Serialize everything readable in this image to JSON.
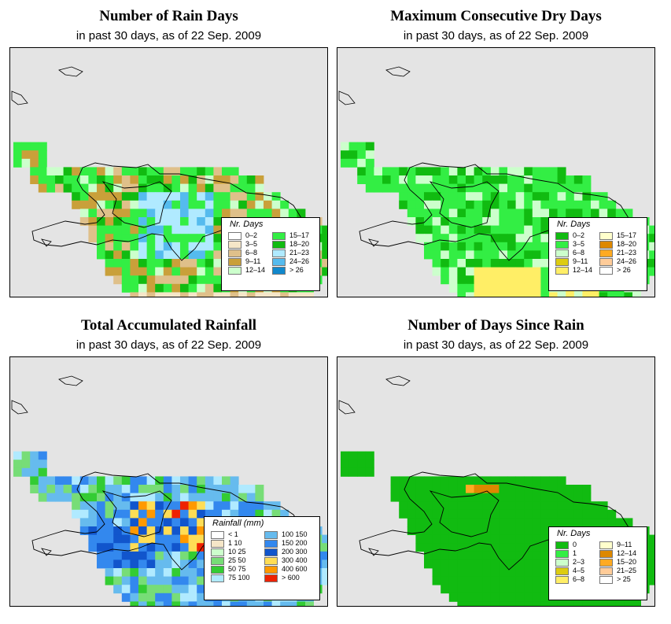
{
  "subtitle": "in past 30 days, as of  22 Sep. 2009",
  "panels": [
    {
      "id": "rain-days",
      "title": "Number of Rain Days",
      "legend_title": "Nr. Days",
      "legend": [
        {
          "label": "0–2",
          "color": "#ffffff"
        },
        {
          "label": "3–5",
          "color": "#f5e6c8"
        },
        {
          "label": "6–8",
          "color": "#dfc08a"
        },
        {
          "label": "9–11",
          "color": "#c9a03a"
        },
        {
          "label": "12–14",
          "color": "#ccffcc"
        },
        {
          "label": "15–17",
          "color": "#33ee44"
        },
        {
          "label": "18–20",
          "color": "#11bb11"
        },
        {
          "label": "21–23",
          "color": "#b0eaff"
        },
        {
          "label": "24–26",
          "color": "#55bbee"
        },
        {
          "label": "> 26",
          "color": "#1188cc"
        }
      ]
    },
    {
      "id": "dry-days",
      "title": "Maximum Consecutive Dry Days",
      "legend_title": "Nr. Days",
      "legend": [
        {
          "label": "0–2",
          "color": "#11bb11"
        },
        {
          "label": "3–5",
          "color": "#33ee44"
        },
        {
          "label": "6–8",
          "color": "#ccffcc"
        },
        {
          "label": "9–11",
          "color": "#ddcc11"
        },
        {
          "label": "12–14",
          "color": "#ffee66"
        },
        {
          "label": "15–17",
          "color": "#ffffcc"
        },
        {
          "label": "18–20",
          "color": "#dd8800"
        },
        {
          "label": "21–23",
          "color": "#ffaa22"
        },
        {
          "label": "24–26",
          "color": "#ffcc99"
        },
        {
          "label": "> 26",
          "color": "#ffffff"
        }
      ]
    },
    {
      "id": "rainfall",
      "title": "Total Accumulated Rainfall",
      "legend_title": "Rainfall (mm)",
      "legend": [
        {
          "label": "< 1",
          "color": "#ffffff"
        },
        {
          "label": "1    10",
          "color": "#f5e6c8"
        },
        {
          "label": "10    25",
          "color": "#ccffcc"
        },
        {
          "label": "25    50",
          "color": "#77dd77"
        },
        {
          "label": "50    75",
          "color": "#33cc33"
        },
        {
          "label": "75    100",
          "color": "#b0eaff"
        },
        {
          "label": "100    150",
          "color": "#66bbee"
        },
        {
          "label": "150    200",
          "color": "#3388ee"
        },
        {
          "label": "200    300",
          "color": "#1155cc"
        },
        {
          "label": "300    400",
          "color": "#ffdd55"
        },
        {
          "label": "400    600",
          "color": "#ff9900"
        },
        {
          "label": "> 600",
          "color": "#ee2200"
        }
      ]
    },
    {
      "id": "since-rain",
      "title": "Number of Days Since Rain",
      "legend_title": "Nr. Days",
      "legend": [
        {
          "label": "0",
          "color": "#11bb11"
        },
        {
          "label": "1",
          "color": "#33ee44"
        },
        {
          "label": "2–3",
          "color": "#ccffcc"
        },
        {
          "label": "4–5",
          "color": "#ddcc11"
        },
        {
          "label": "6–8",
          "color": "#ffee66"
        },
        {
          "label": "9–11",
          "color": "#ffffcc"
        },
        {
          "label": "12–14",
          "color": "#dd8800"
        },
        {
          "label": "15–20",
          "color": "#ffaa22"
        },
        {
          "label": "21–25",
          "color": "#ffcc99"
        },
        {
          "label": "> 25",
          "color": "#ffffff"
        }
      ]
    }
  ]
}
